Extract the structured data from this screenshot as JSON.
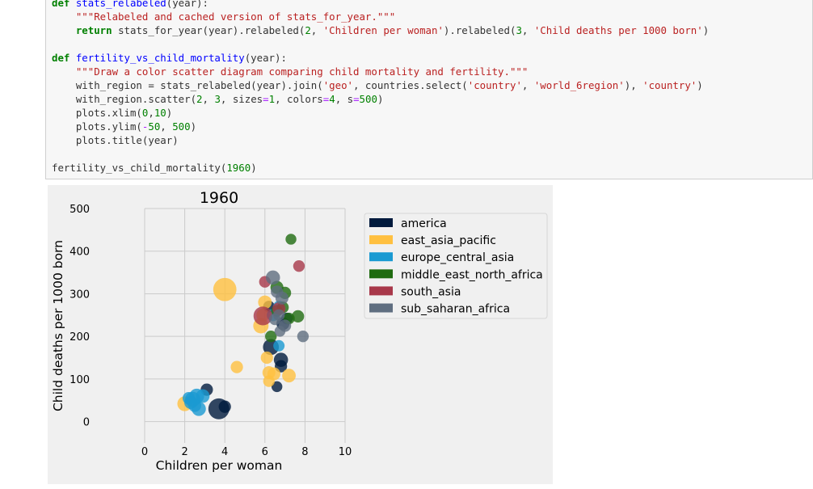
{
  "code": {
    "lines": [
      [
        [
          "kw",
          "def "
        ],
        [
          "fn",
          "stats_relabeled"
        ],
        [
          "t",
          "(year):"
        ]
      ],
      [
        [
          "t",
          "    "
        ],
        [
          "str",
          "\"\"\"Relabeled and cached version of stats_for_year.\"\"\""
        ]
      ],
      [
        [
          "t",
          "    "
        ],
        [
          "kw",
          "return"
        ],
        [
          "t",
          " stats_for_year(year).relabeled("
        ],
        [
          "num",
          "2"
        ],
        [
          "t",
          ", "
        ],
        [
          "str",
          "'Children per woman'"
        ],
        [
          "t",
          ").relabeled("
        ],
        [
          "num",
          "3"
        ],
        [
          "t",
          ", "
        ],
        [
          "str",
          "'Child deaths per 1000 born'"
        ],
        [
          "t",
          ")"
        ]
      ],
      [
        [
          "t",
          ""
        ]
      ],
      [
        [
          "kw",
          "def "
        ],
        [
          "fn",
          "fertility_vs_child_mortality"
        ],
        [
          "t",
          "(year):"
        ]
      ],
      [
        [
          "t",
          "    "
        ],
        [
          "str",
          "\"\"\"Draw a color scatter diagram comparing child mortality and fertility.\"\"\""
        ]
      ],
      [
        [
          "t",
          "    with_region = stats_relabeled(year).join("
        ],
        [
          "str",
          "'geo'"
        ],
        [
          "t",
          ", countries.select("
        ],
        [
          "str",
          "'country'"
        ],
        [
          "t",
          ", "
        ],
        [
          "str",
          "'world_6region'"
        ],
        [
          "t",
          "), "
        ],
        [
          "str",
          "'country'"
        ],
        [
          "t",
          ")"
        ]
      ],
      [
        [
          "t",
          "    with_region.scatter("
        ],
        [
          "num",
          "2"
        ],
        [
          "t",
          ", "
        ],
        [
          "num",
          "3"
        ],
        [
          "t",
          ", sizes"
        ],
        [
          "op",
          "="
        ],
        [
          "num",
          "1"
        ],
        [
          "t",
          ", colors"
        ],
        [
          "op",
          "="
        ],
        [
          "num",
          "4"
        ],
        [
          "t",
          ", s"
        ],
        [
          "op",
          "="
        ],
        [
          "num",
          "500"
        ],
        [
          "t",
          ")"
        ]
      ],
      [
        [
          "t",
          "    plots.xlim("
        ],
        [
          "num",
          "0"
        ],
        [
          "t",
          ","
        ],
        [
          "num",
          "10"
        ],
        [
          "t",
          ")"
        ]
      ],
      [
        [
          "t",
          "    plots.ylim("
        ],
        [
          "op",
          "-"
        ],
        [
          "num",
          "50"
        ],
        [
          "t",
          ", "
        ],
        [
          "num",
          "500"
        ],
        [
          "t",
          ")"
        ]
      ],
      [
        [
          "t",
          "    plots.title(year)"
        ]
      ],
      [
        [
          "t",
          ""
        ]
      ],
      [
        [
          "t",
          "fertility_vs_child_mortality("
        ],
        [
          "num",
          "1960"
        ],
        [
          "t",
          ")"
        ]
      ]
    ]
  },
  "chart_data": {
    "type": "scatter",
    "title": "1960",
    "xlabel": "Children per woman",
    "ylabel": "Child deaths per 1000 born",
    "xlim": [
      0,
      10
    ],
    "ylim": [
      -50,
      500
    ],
    "xticks": [
      "0",
      "2",
      "4",
      "6",
      "8",
      "10"
    ],
    "yticks": [
      "0",
      "100",
      "200",
      "300",
      "400",
      "500"
    ],
    "grid": true,
    "legend_position": "outside-right",
    "series": [
      {
        "name": "america",
        "color": "#001a3d",
        "points": [
          [
            3.7,
            30,
            1.3
          ],
          [
            4.0,
            35,
            0.45
          ],
          [
            3.1,
            75,
            0.45
          ],
          [
            6.3,
            175,
            0.75
          ],
          [
            6.8,
            145,
            0.6
          ],
          [
            6.9,
            230,
            0.5
          ],
          [
            6.8,
            130,
            0.45
          ],
          [
            6.6,
            82,
            0.35
          ],
          [
            7.1,
            242,
            0.4
          ],
          [
            6.2,
            270,
            0.4
          ]
        ]
      },
      {
        "name": "east_asia_pacific",
        "color": "#ffc040",
        "points": [
          [
            4.0,
            310,
            1.6
          ],
          [
            5.8,
            225,
            0.7
          ],
          [
            6.0,
            280,
            0.55
          ],
          [
            2.0,
            42,
            0.65
          ],
          [
            4.6,
            128,
            0.45
          ],
          [
            6.1,
            150,
            0.45
          ],
          [
            6.2,
            115,
            0.5
          ],
          [
            6.45,
            112,
            0.5
          ],
          [
            6.2,
            95,
            0.4
          ],
          [
            7.2,
            108,
            0.55
          ],
          [
            5.9,
            250,
            0.5
          ]
        ]
      },
      {
        "name": "europe_central_asia",
        "color": "#1a9ad2",
        "points": [
          [
            2.4,
            52,
            0.7
          ],
          [
            2.6,
            60,
            0.65
          ],
          [
            2.3,
            45,
            0.5
          ],
          [
            2.9,
            60,
            0.55
          ],
          [
            2.7,
            30,
            0.6
          ],
          [
            2.2,
            55,
            0.45
          ],
          [
            2.5,
            38,
            0.5
          ],
          [
            6.7,
            178,
            0.38
          ],
          [
            6.4,
            250,
            0.45
          ],
          [
            6.7,
            270,
            0.4
          ]
        ]
      },
      {
        "name": "middle_east_north_africa",
        "color": "#1f6b10",
        "points": [
          [
            7.3,
            428,
            0.35
          ],
          [
            6.6,
            315,
            0.5
          ],
          [
            7.0,
            302,
            0.45
          ],
          [
            7.2,
            242,
            0.4
          ],
          [
            7.65,
            247,
            0.45
          ],
          [
            6.9,
            268,
            0.4
          ],
          [
            6.6,
            260,
            0.4
          ],
          [
            6.3,
            200,
            0.4
          ]
        ]
      },
      {
        "name": "south_asia",
        "color": "#a8384a",
        "points": [
          [
            5.9,
            248,
            1.05
          ],
          [
            6.7,
            265,
            0.5
          ],
          [
            6.0,
            328,
            0.4
          ],
          [
            7.7,
            365,
            0.4
          ]
        ]
      },
      {
        "name": "sub_saharan_africa",
        "color": "#5f6e80",
        "points": [
          [
            6.4,
            338,
            0.6
          ],
          [
            6.85,
            290,
            0.5
          ],
          [
            6.6,
            305,
            0.45
          ],
          [
            7.0,
            225,
            0.45
          ],
          [
            6.75,
            212,
            0.35
          ],
          [
            7.9,
            200,
            0.4
          ],
          [
            6.7,
            250,
            0.4
          ],
          [
            6.5,
            240,
            0.4
          ]
        ]
      }
    ]
  }
}
